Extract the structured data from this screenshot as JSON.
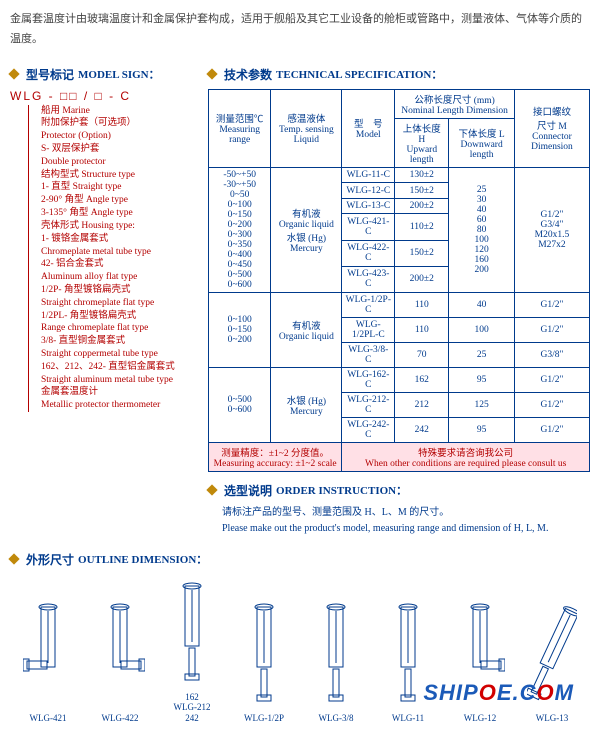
{
  "intro": "金属套温度计由玻璃温度计和金属保护套构成，适用于舰船及其它工业设备的舱柜或管路中，测量液体、气体等介质的温度。",
  "sections": {
    "model": {
      "cn": "型号标记",
      "en": "MODEL SIGN："
    },
    "spec": {
      "cn": "技术参数",
      "en": "TECHNICAL SPECIFICATION："
    },
    "order": {
      "cn": "选型说明",
      "en": "ORDER INSTRUCTION："
    },
    "outline": {
      "cn": "外形尺寸",
      "en": "OUTLINE DIMENSION："
    }
  },
  "model_sign_code": "WLG - □□ / □ - C",
  "model_tree": [
    "船用 Marine",
    "附加保护套（可选项）",
    "Protector (Option)",
    "S- 双层保护套",
    "Double protector",
    "结构型式 Structure type",
    "1- 直型 Straight type",
    "2-90° 角型 Angle type",
    "3-135° 角型 Angle type",
    "壳体形式 Housing type:",
    "1- 镀铬金属套式",
    "Chromeplate metal tube type",
    "42- 铝合金套式",
    "Aluminum alloy flat type",
    "1/2P- 角型镀铬扁壳式",
    "Straight chromeplate flat type",
    "1/2PL- 角型镀铬扁壳式",
    "Range chromeplate flat type",
    "3/8- 直型铜金属套式",
    "Straight coppermetal tube type",
    "162、212、242- 直型铝金属套式",
    "Straight aluminum metal tube type",
    "金属套温度计",
    "Metallic protector thermometer"
  ],
  "spec_table": {
    "headers": {
      "range_cn": "测量范围℃",
      "range_en": "Measuring range",
      "liquid_cn": "感温液体",
      "liquid_en": "Temp. sensing Liquid",
      "model_cn": "型　号",
      "model_en": "Model",
      "nom_cn": "公称长度尺寸 (mm)",
      "nom_en": "Nominal Length Dimension",
      "up_cn": "上体长度 H",
      "up_en": "Upward length",
      "down_cn": "下体长度 L",
      "down_en": "Downward length",
      "conn_cn": "接口螺纹",
      "conn_sub": "尺寸 M",
      "conn_en": "Connector Dimension"
    },
    "block1": {
      "ranges": "-50~+50\n-30~+50\n0~50\n0~100\n0~150\n0~200\n0~300\n0~350\n0~400\n0~450\n0~500\n0~600",
      "liquid": "有机液\nOrganic liquid\n水银 (Hg)\nMercury",
      "rows_top": [
        {
          "model": "WLG-11-C",
          "h": "130±2"
        },
        {
          "model": "WLG-12-C",
          "h": "150±2"
        },
        {
          "model": "WLG-13-C",
          "h": "200±2"
        }
      ],
      "rows_bot": [
        {
          "model": "WLG-421-C",
          "h": "110±2"
        },
        {
          "model": "WLG-422-C",
          "h": "150±2"
        },
        {
          "model": "WLG-423-C",
          "h": "200±2"
        }
      ],
      "down_vals": "25\n30\n40\n60\n80\n100\n120\n160\n200",
      "conn": "G1/2\"\nG3/4\"\nM20x1.5\nM27x2"
    },
    "block2": {
      "ranges": "0~100\n0~150\n0~200",
      "liquid": "有机液\nOrganic liquid",
      "rows": [
        {
          "model": "WLG-1/2P-C",
          "h": "110",
          "l": "40",
          "conn": "G1/2\""
        },
        {
          "model": "WLG-1/2PL-C",
          "h": "110",
          "l": "100",
          "conn": "G1/2\""
        },
        {
          "model": "WLG-3/8-C",
          "h": "70",
          "l": "25",
          "conn": "G3/8\""
        }
      ]
    },
    "block3": {
      "ranges": "0~500\n0~600",
      "liquid": "水银 (Hg)\nMercury",
      "rows": [
        {
          "model": "WLG-162-C",
          "h": "162",
          "l": "95",
          "conn": "G1/2\""
        },
        {
          "model": "WLG-212-C",
          "h": "212",
          "l": "125",
          "conn": "G1/2\""
        },
        {
          "model": "WLG-242-C",
          "h": "242",
          "l": "95",
          "conn": "G1/2\""
        }
      ]
    },
    "footer": {
      "left_cn": "测量精度：±1~2 分度值。",
      "left_en": "Measuring accuracy: ±1~2 scale",
      "right_cn": "特殊要求请咨询我公司",
      "right_en": "When other conditions are required please consult us"
    }
  },
  "order": {
    "cn": "请标注产品的型号、测量范围及 H、L、M 的尺寸。",
    "en": "Please make out the product's model, measuring range and dimension of H, L, M."
  },
  "outline_labels": [
    "WLG-421",
    "WLG-422",
    "162\nWLG-212\n242",
    "WLG-1/2P",
    "WLG-3/8",
    "WLG-11",
    "WLG-12",
    "WLG-13"
  ],
  "watermark": {
    "a": "SHIP",
    "b": "O",
    "c": "E",
    "d": ".C",
    "e": "O",
    "f": "M"
  }
}
